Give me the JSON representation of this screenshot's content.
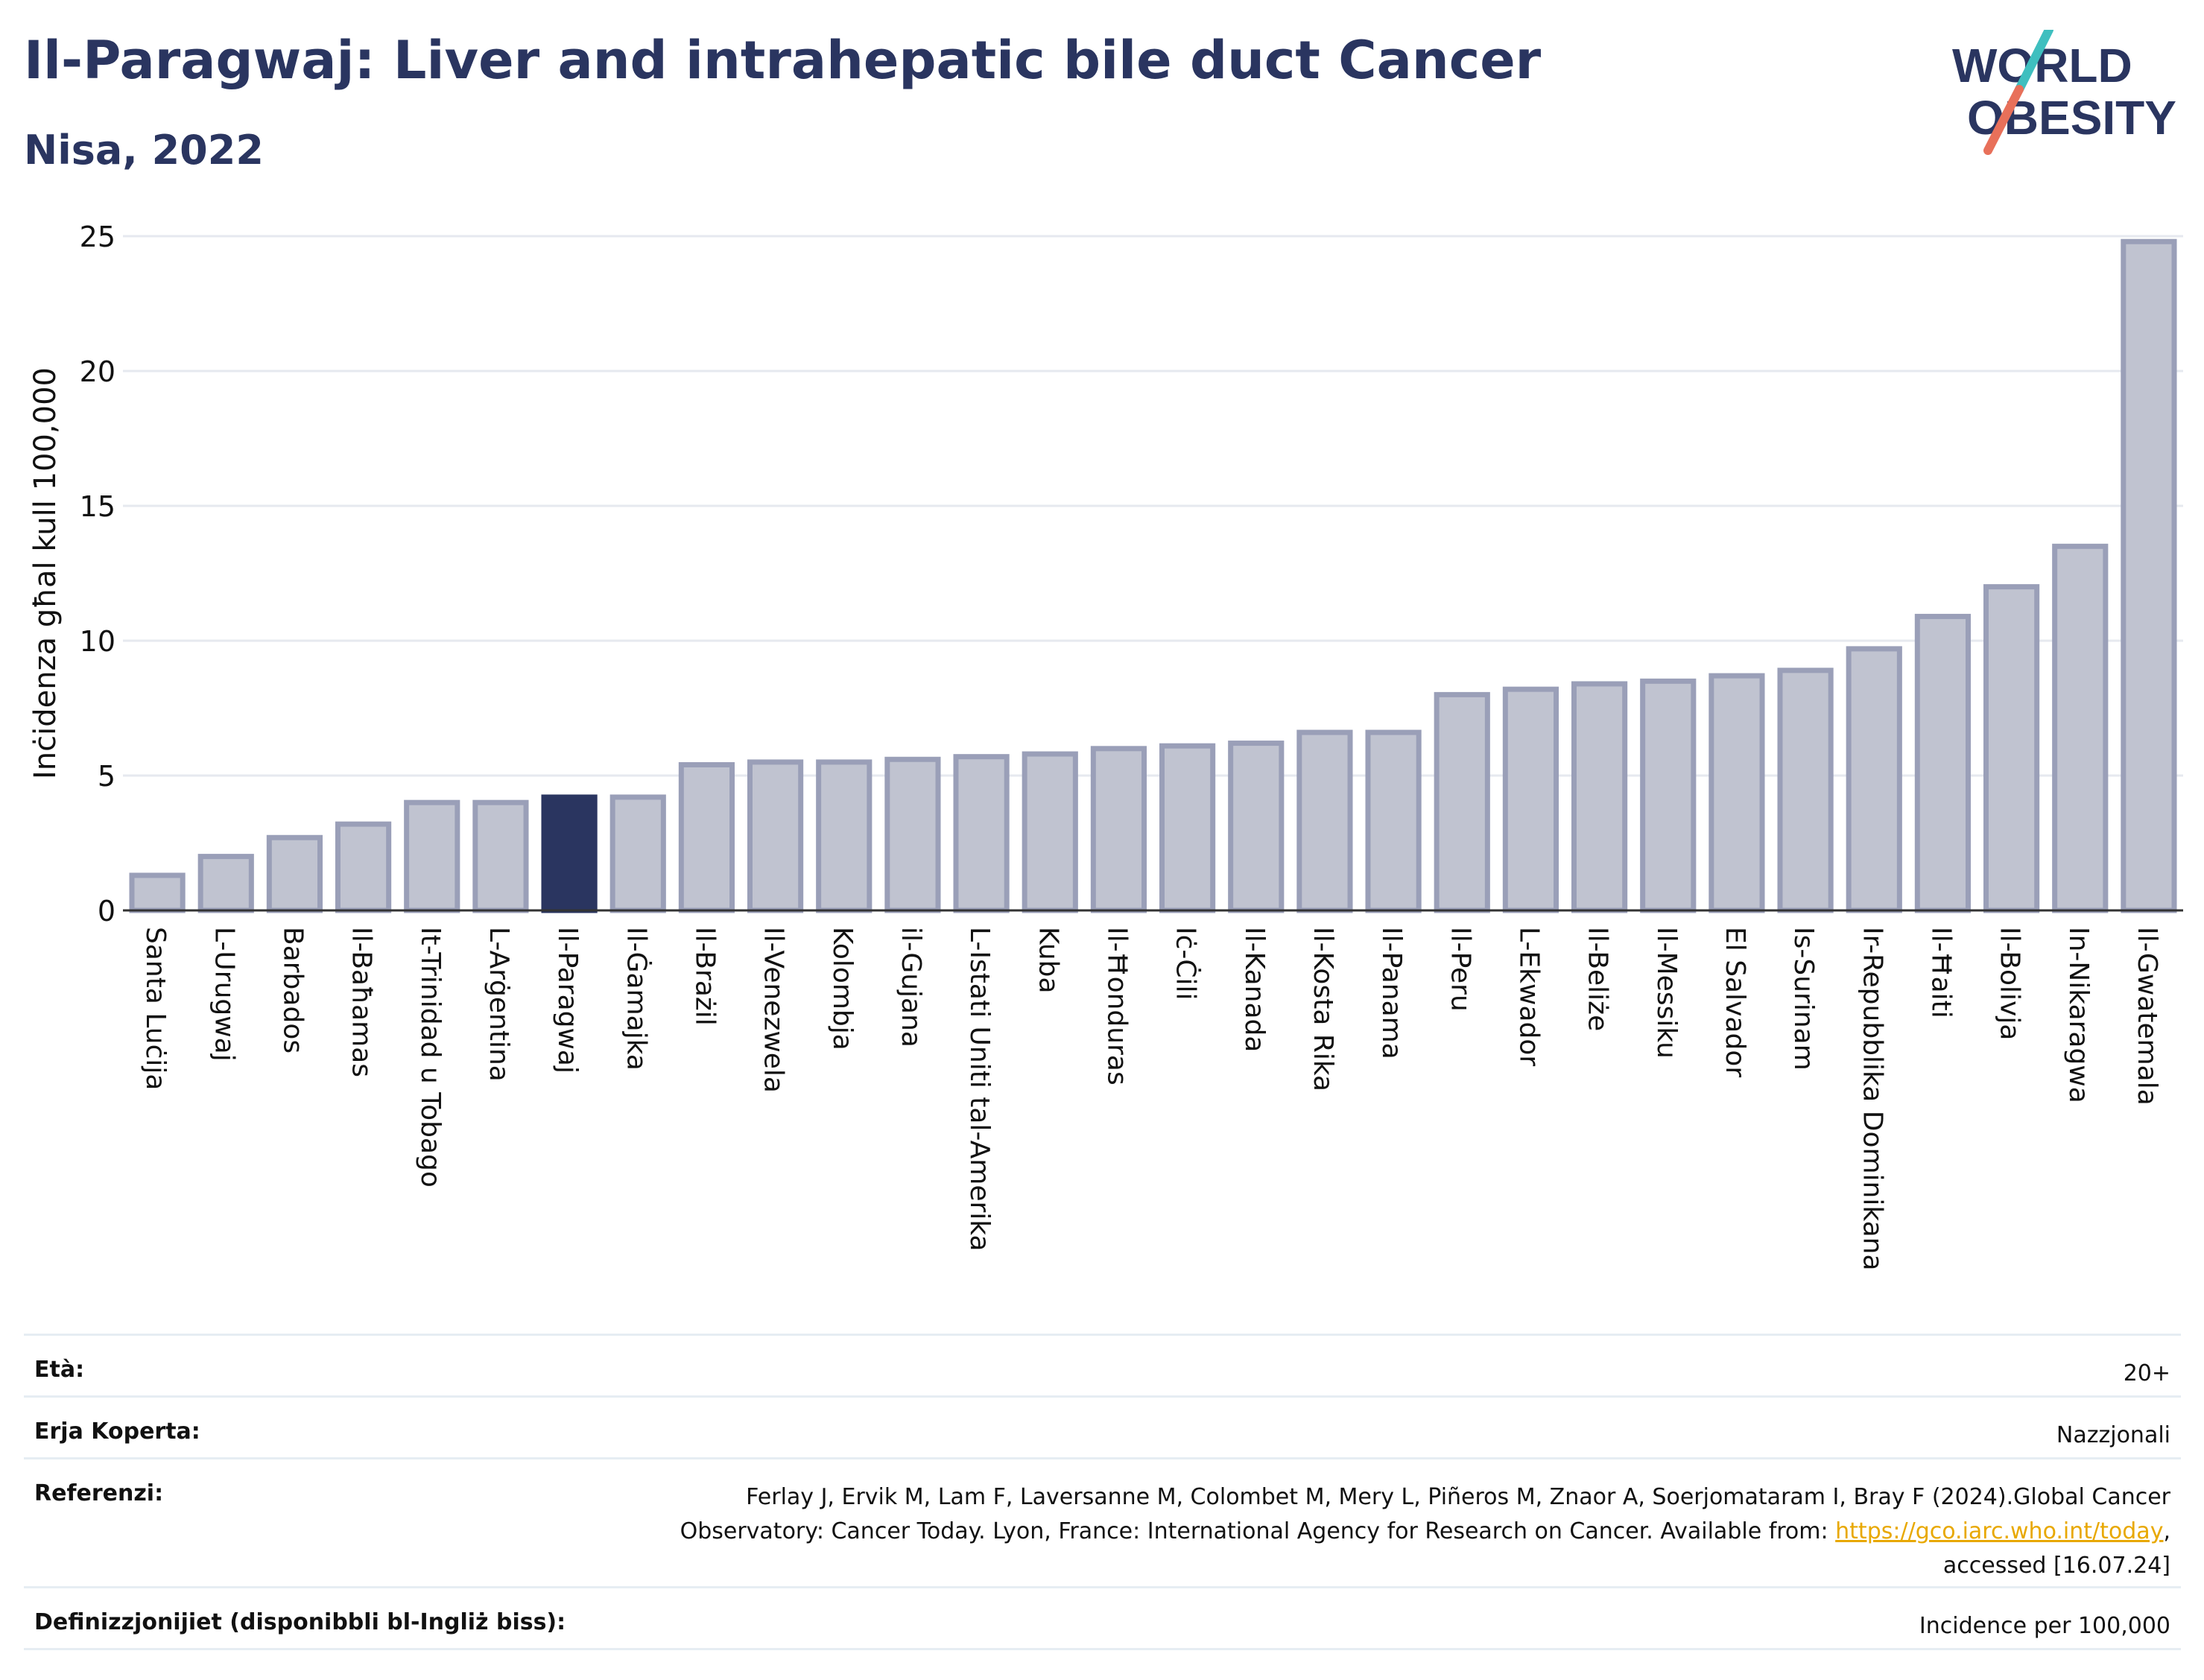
{
  "title": "Il-Paragwaj: Liver and intrahepatic bile duct Cancer",
  "subtitle": "Nisa, 2022",
  "logo": {
    "line1": "WORLD",
    "line2": "OBESITY",
    "accent1": "#3fbfbf",
    "accent2": "#e8705a"
  },
  "chart_data": {
    "type": "bar",
    "ylabel": "Inċidenza għal kull 100,000",
    "ylim": [
      0,
      25
    ],
    "yticks": [
      0,
      5,
      10,
      15,
      20,
      25
    ],
    "grid": true,
    "highlight": "Il-Paragwaj",
    "colors": {
      "bar": "#c0c3d0",
      "bar_edge": "#9a9fb8",
      "highlight": "#2a3560"
    },
    "categories": [
      "Santa Luċija",
      "L-Urugwaj",
      "Barbados",
      "Il-Baħamas",
      "It-Trinidad u Tobago",
      "L-Arġentina",
      "Il-Paragwaj",
      "Il-Ġamajka",
      "Il-Brażil",
      "Il-Venezwela",
      "Kolombja",
      "il-Gujana",
      "L-Istati Uniti tal-Amerika",
      "Kuba",
      "Il-Ħonduras",
      "Iċ-Ċili",
      "Il-Kanada",
      "Il-Kosta Rika",
      "Il-Panama",
      "Il-Peru",
      "L-Ekwador",
      "Il-Beliże",
      "Il-Messiku",
      "El Salvador",
      "Is-Surinam",
      "Ir-Repubblika Dominikana",
      "Il-Ħaiti",
      "Il-Bolivja",
      "In-Nikaragwa",
      "Il-Gwatemala"
    ],
    "values": [
      1.3,
      2.0,
      2.7,
      3.2,
      4.0,
      4.0,
      4.2,
      4.2,
      5.4,
      5.5,
      5.5,
      5.6,
      5.7,
      5.8,
      6.0,
      6.1,
      6.2,
      6.6,
      6.6,
      8.0,
      8.2,
      8.4,
      8.5,
      8.7,
      8.9,
      9.7,
      10.9,
      12.0,
      13.5,
      24.8
    ]
  },
  "meta": [
    {
      "label": "Età:",
      "value": "20+"
    },
    {
      "label": "Erja Koperta:",
      "value": "Nazzjonali"
    },
    {
      "label": "Referenzi:",
      "value_line1": "Ferlay J, Ervik M, Lam F, Laversanne M, Colombet M, Mery L, Piñeros M, Znaor A, Soerjomataram I, Bray F (2024).Global Cancer",
      "value_line2_pre": "Observatory: Cancer Today. Lyon, France: International Agency for Research on Cancer. Available from: ",
      "link": "https://gco.iarc.who.int/today",
      "value_line2_post": ",",
      "value_line3": "accessed [16.07.24]"
    },
    {
      "label": "Definizzjonijiet (disponibbli bl-Ingliż biss):",
      "value": "Incidence per 100,000"
    }
  ]
}
